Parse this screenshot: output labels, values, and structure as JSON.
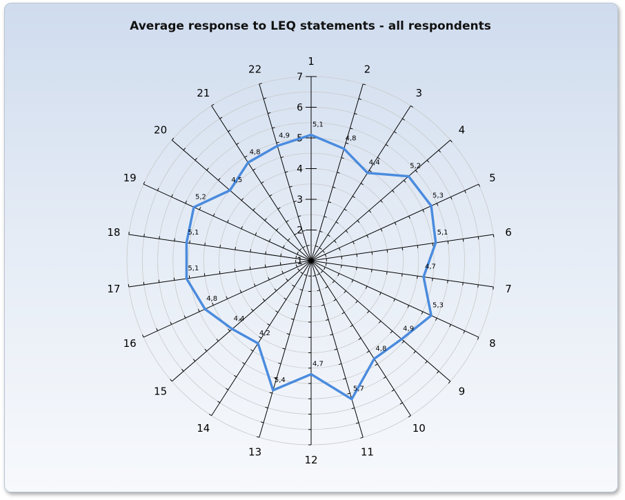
{
  "chart_data": {
    "type": "radar",
    "title": "Average response to LEQ statements - all respondents",
    "categories": [
      "1",
      "2",
      "3",
      "4",
      "5",
      "6",
      "7",
      "8",
      "9",
      "10",
      "11",
      "12",
      "13",
      "14",
      "15",
      "16",
      "17",
      "18",
      "19",
      "20",
      "21",
      "22"
    ],
    "series": [
      {
        "values": [
          5.1,
          4.8,
          4.4,
          5.2,
          5.3,
          5.1,
          4.7,
          5.3,
          4.9,
          4.8,
          5.7,
          4.7,
          5.4,
          4.2,
          4.4,
          4.8,
          5.1,
          5.1,
          5.2,
          4.5,
          4.8,
          4.9
        ],
        "data_labels": [
          "5,1",
          "4,8",
          "4,4",
          "5,2",
          "5,3",
          "5,1",
          "4,7",
          "5,3",
          "4,9",
          "4,8",
          "5,7",
          "4,7",
          "5,4",
          "4,2",
          "4,4",
          "4,8",
          "5,1",
          "5,1",
          "5,2",
          "4,5",
          "4,8",
          "4,9"
        ],
        "color": "#4a8bde"
      }
    ],
    "axis_ticks": [
      "1",
      "2",
      "3",
      "4",
      "5",
      "6",
      "7"
    ],
    "rmin": 1,
    "rmax": 7,
    "grid": true,
    "legend": "none"
  }
}
